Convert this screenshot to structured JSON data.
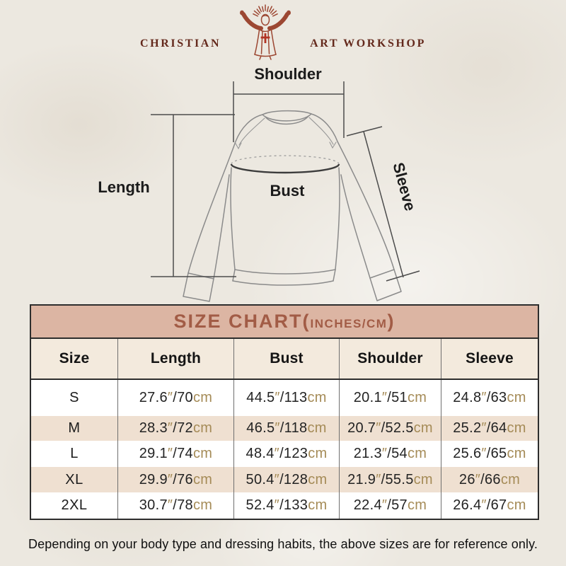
{
  "brand": {
    "name_left": "CHRISTIAN",
    "name_right": "ART WORKSHOP"
  },
  "diagram": {
    "shoulder_label": "Shoulder",
    "length_label": "Length",
    "bust_label": "Bust",
    "sleeve_label": "Sleeve"
  },
  "size_chart": {
    "title_main": "SIZE CHART(",
    "title_unit": "INCHES/CM",
    "title_close": ")",
    "inch_mark": "″",
    "unit_suffix": "cm",
    "columns": [
      "Size",
      "Length",
      "Bust",
      "Shoulder",
      "Sleeve"
    ],
    "rows": [
      {
        "size": "S",
        "cells": [
          {
            "in": "27.6",
            "cm": "70"
          },
          {
            "in": "44.5",
            "cm": "113"
          },
          {
            "in": "20.1",
            "cm": "51"
          },
          {
            "in": "24.8",
            "cm": "63"
          }
        ]
      },
      {
        "size": "M",
        "cells": [
          {
            "in": "28.3",
            "cm": "72"
          },
          {
            "in": "46.5",
            "cm": "118"
          },
          {
            "in": "20.7",
            "cm": "52.5"
          },
          {
            "in": "25.2",
            "cm": "64"
          }
        ]
      },
      {
        "size": "L",
        "cells": [
          {
            "in": "29.1",
            "cm": "74"
          },
          {
            "in": "48.4",
            "cm": "123"
          },
          {
            "in": "21.3",
            "cm": "54"
          },
          {
            "in": "25.6",
            "cm": "65"
          }
        ]
      },
      {
        "size": "XL",
        "cells": [
          {
            "in": "29.9",
            "cm": "76"
          },
          {
            "in": "50.4",
            "cm": "128"
          },
          {
            "in": "21.9",
            "cm": "55.5"
          },
          {
            "in": "26",
            "cm": "66"
          }
        ]
      },
      {
        "size": "2XL",
        "cells": [
          {
            "in": "30.7",
            "cm": "78"
          },
          {
            "in": "52.4",
            "cm": "133"
          },
          {
            "in": "22.4",
            "cm": "57"
          },
          {
            "in": "26.4",
            "cm": "67"
          }
        ]
      }
    ]
  },
  "footer": {
    "note": "Depending on your body type and dressing habits, the above sizes are for reference only."
  },
  "colors": {
    "page_background": "#ece8e0",
    "logo_maroon": "#9c4732",
    "logo_text": "#64291c",
    "cross_red": "#b23425",
    "title_bar_background": "#dcb5a3",
    "title_text": "#a25c46",
    "header_row_background": "#f3eadd",
    "alt_row_background": "#efe0d1",
    "unit_accent_tan": "#a58b57",
    "table_border": "#2d2d2d"
  },
  "chart_data": {
    "type": "table",
    "title": "SIZE CHART(INCHES/CM)",
    "columns": [
      "Size",
      "Length",
      "Bust",
      "Shoulder",
      "Sleeve"
    ],
    "rows": [
      [
        "S",
        "27.6″/70cm",
        "44.5″/113cm",
        "20.1″/51cm",
        "24.8″/63cm"
      ],
      [
        "M",
        "28.3″/72cm",
        "46.5″/118cm",
        "20.7″/52.5cm",
        "25.2″/64cm"
      ],
      [
        "L",
        "29.1″/74cm",
        "48.4″/123cm",
        "21.3″/54cm",
        "25.6″/65cm"
      ],
      [
        "XL",
        "29.9″/76cm",
        "50.4″/128cm",
        "21.9″/55.5cm",
        "26″/66cm"
      ],
      [
        "2XL",
        "30.7″/78cm",
        "52.4″/133cm",
        "22.4″/57cm",
        "26.4″/67cm"
      ]
    ]
  }
}
